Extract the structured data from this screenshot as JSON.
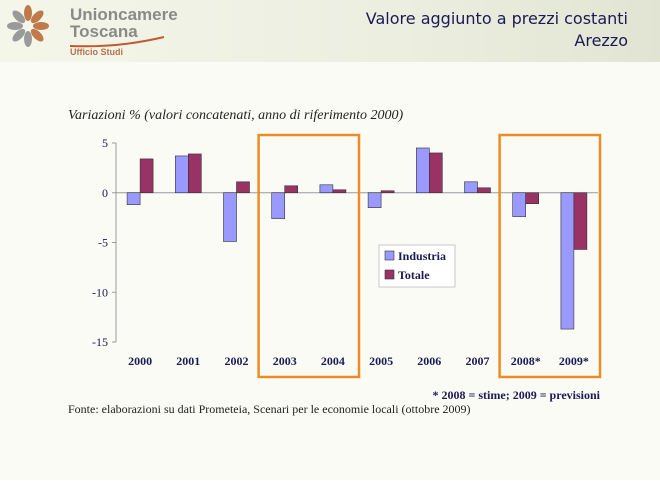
{
  "header": {
    "logo_line1": "Unioncamere",
    "logo_line2": "Toscana",
    "logo_sub": "Ufficio Studi",
    "title_line1": "Valore aggiunto a prezzi costanti",
    "title_line2": "Arezzo"
  },
  "colors": {
    "industria": "#9999ff",
    "totale": "#993366",
    "highlight_box": "#f08a24",
    "title_text": "#1a1a55"
  },
  "chart_data": {
    "type": "bar",
    "title": "Variazioni % (valori concatenati, anno di riferimento 2000)",
    "categories": [
      "2000",
      "2001",
      "2002",
      "2003",
      "2004",
      "2005",
      "2006",
      "2007",
      "2008*",
      "2009*"
    ],
    "series": [
      {
        "name": "Industria",
        "values": [
          -1.2,
          3.7,
          -4.9,
          -2.6,
          0.8,
          -1.5,
          4.5,
          1.1,
          -2.4,
          -13.7
        ]
      },
      {
        "name": "Totale",
        "values": [
          3.4,
          3.9,
          1.1,
          0.7,
          0.3,
          0.2,
          4.0,
          0.5,
          -1.1,
          -5.7
        ]
      }
    ],
    "ylim": [
      -15,
      5
    ],
    "yticks": [
      "5",
      "0",
      "-5",
      "-10",
      "-15"
    ],
    "legend_position": "center-right",
    "highlighted_categories": [
      [
        "2003",
        "2004"
      ],
      [
        "2008*",
        "2009*"
      ]
    ],
    "footnote": "* 2008 = stime; 2009 = previsioni",
    "source": "Fonte: elaborazioni su dati Prometeia, Scenari per le economie locali (ottobre 2009)"
  }
}
